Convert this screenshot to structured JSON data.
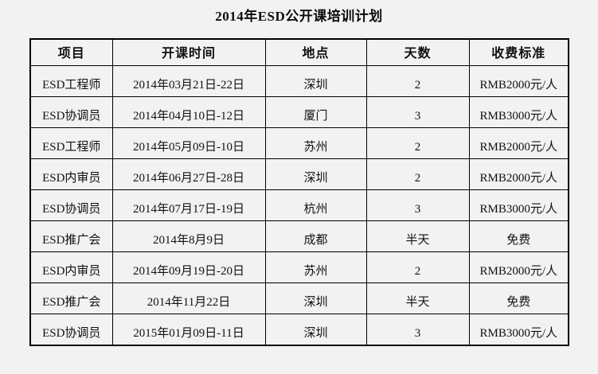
{
  "page": {
    "background_color": "#f2f2f2",
    "title": "2014年ESD公开课培训计划"
  },
  "table": {
    "border_color": "#000000",
    "text_color": "#111111",
    "columns": [
      "项目",
      "开课时间",
      "地点",
      "天数",
      "收费标准"
    ],
    "rows": [
      [
        "ESD工程师",
        "2014年03月21日-22日",
        "深圳",
        "2",
        "RMB2000元/人"
      ],
      [
        "ESD协调员",
        "2014年04月10日-12日",
        "厦门",
        "3",
        "RMB3000元/人"
      ],
      [
        "ESD工程师",
        "2014年05月09日-10日",
        "苏州",
        "2",
        "RMB2000元/人"
      ],
      [
        "ESD内审员",
        "2014年06月27日-28日",
        "深圳",
        "2",
        "RMB2000元/人"
      ],
      [
        "ESD协调员",
        "2014年07月17日-19日",
        "杭州",
        "3",
        "RMB3000元/人"
      ],
      [
        "ESD推广会",
        "2014年8月9日",
        "成都",
        "半天",
        "免费"
      ],
      [
        "ESD内审员",
        "2014年09月19日-20日",
        "苏州",
        "2",
        "RMB2000元/人"
      ],
      [
        "ESD推广会",
        "2014年11月22日",
        "深圳",
        "半天",
        "免费"
      ],
      [
        "ESD协调员",
        "2015年01月09日-11日",
        "深圳",
        "3",
        "RMB3000元/人"
      ]
    ]
  }
}
